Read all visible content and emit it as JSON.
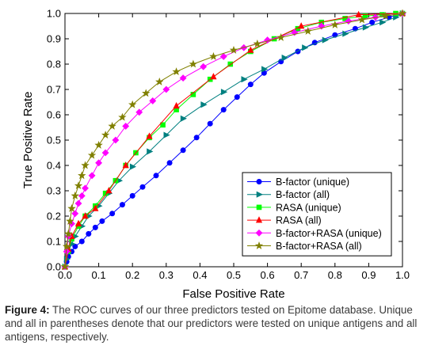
{
  "chart_data": {
    "type": "line",
    "xlabel": "False Positive Rate",
    "ylabel": "True Positive Rate",
    "xlim": [
      0.0,
      1.0
    ],
    "ylim": [
      0.0,
      1.0
    ],
    "x_ticks": [
      "0.0",
      "0.1",
      "0.2",
      "0.3",
      "0.4",
      "0.5",
      "0.6",
      "0.7",
      "0.8",
      "0.9",
      "1.0"
    ],
    "y_ticks": [
      "0.0",
      "0.1",
      "0.2",
      "0.3",
      "0.4",
      "0.5",
      "0.6",
      "0.7",
      "0.8",
      "0.9",
      "1.0"
    ],
    "grid": false,
    "legend_position": "lower-right",
    "series": [
      {
        "name": "B-factor (unique)",
        "color": "#0000ff",
        "marker": "circle",
        "x": [
          0,
          0.005,
          0.01,
          0.02,
          0.03,
          0.05,
          0.07,
          0.09,
          0.11,
          0.14,
          0.17,
          0.2,
          0.23,
          0.27,
          0.31,
          0.35,
          0.39,
          0.43,
          0.47,
          0.51,
          0.55,
          0.59,
          0.64,
          0.69,
          0.74,
          0.8,
          0.86,
          0.91,
          0.96,
          1.0
        ],
        "y": [
          0,
          0.02,
          0.04,
          0.06,
          0.08,
          0.1,
          0.13,
          0.155,
          0.18,
          0.21,
          0.245,
          0.28,
          0.315,
          0.36,
          0.41,
          0.46,
          0.51,
          0.565,
          0.62,
          0.67,
          0.72,
          0.765,
          0.81,
          0.85,
          0.885,
          0.915,
          0.94,
          0.965,
          0.985,
          1.0
        ]
      },
      {
        "name": "B-factor (all)",
        "color": "#008080",
        "marker": "triangle-right",
        "x": [
          0,
          0.005,
          0.01,
          0.02,
          0.03,
          0.05,
          0.07,
          0.1,
          0.13,
          0.16,
          0.2,
          0.25,
          0.3,
          0.35,
          0.41,
          0.47,
          0.53,
          0.59,
          0.65,
          0.71,
          0.77,
          0.83,
          0.89,
          0.94,
          0.98,
          1.0
        ],
        "y": [
          0,
          0.03,
          0.06,
          0.09,
          0.12,
          0.16,
          0.2,
          0.24,
          0.29,
          0.34,
          0.395,
          0.455,
          0.52,
          0.585,
          0.64,
          0.69,
          0.74,
          0.78,
          0.825,
          0.865,
          0.895,
          0.92,
          0.945,
          0.965,
          0.985,
          1.0
        ]
      },
      {
        "name": "RASA (unique)",
        "color": "#00ff00",
        "marker": "square",
        "x": [
          0,
          0.01,
          0.02,
          0.04,
          0.06,
          0.09,
          0.12,
          0.15,
          0.18,
          0.21,
          0.25,
          0.29,
          0.33,
          0.38,
          0.43,
          0.49,
          0.55,
          0.62,
          0.69,
          0.76,
          0.83,
          0.89,
          0.94,
          0.98,
          1.0
        ],
        "y": [
          0,
          0.06,
          0.11,
          0.16,
          0.2,
          0.24,
          0.29,
          0.34,
          0.4,
          0.45,
          0.51,
          0.56,
          0.62,
          0.68,
          0.74,
          0.8,
          0.85,
          0.9,
          0.94,
          0.965,
          0.98,
          0.99,
          0.995,
          1.0,
          1.0
        ]
      },
      {
        "name": "RASA (all)",
        "color": "#ff0000",
        "marker": "triangle-up",
        "x": [
          0,
          0.01,
          0.02,
          0.04,
          0.06,
          0.09,
          0.13,
          0.18,
          0.25,
          0.33,
          0.44,
          0.55,
          0.7,
          0.87,
          1.0
        ],
        "y": [
          0,
          0.07,
          0.12,
          0.17,
          0.2,
          0.23,
          0.3,
          0.4,
          0.515,
          0.635,
          0.75,
          0.855,
          0.95,
          0.995,
          1.0
        ]
      },
      {
        "name": "B-factor+RASA (unique)",
        "color": "#ff00ff",
        "marker": "diamond",
        "x": [
          0,
          0.005,
          0.01,
          0.02,
          0.03,
          0.04,
          0.05,
          0.06,
          0.08,
          0.1,
          0.12,
          0.15,
          0.18,
          0.22,
          0.26,
          0.3,
          0.35,
          0.41,
          0.47,
          0.53,
          0.6,
          0.68,
          0.76,
          0.84,
          0.92,
          1.0
        ],
        "y": [
          0,
          0.06,
          0.12,
          0.17,
          0.21,
          0.25,
          0.28,
          0.31,
          0.36,
          0.41,
          0.45,
          0.5,
          0.555,
          0.61,
          0.655,
          0.7,
          0.745,
          0.79,
          0.83,
          0.865,
          0.895,
          0.925,
          0.95,
          0.97,
          0.985,
          1.0
        ]
      },
      {
        "name": "B-factor+RASA (all)",
        "color": "#808000",
        "marker": "star",
        "x": [
          0,
          0.005,
          0.01,
          0.015,
          0.02,
          0.03,
          0.04,
          0.05,
          0.06,
          0.08,
          0.1,
          0.12,
          0.14,
          0.17,
          0.2,
          0.24,
          0.28,
          0.33,
          0.38,
          0.44,
          0.5,
          0.57,
          0.64,
          0.72,
          0.8,
          0.88,
          0.95,
          1.0
        ],
        "y": [
          0,
          0.08,
          0.13,
          0.18,
          0.23,
          0.28,
          0.32,
          0.36,
          0.4,
          0.44,
          0.48,
          0.52,
          0.555,
          0.59,
          0.64,
          0.685,
          0.73,
          0.77,
          0.8,
          0.83,
          0.855,
          0.88,
          0.905,
          0.93,
          0.955,
          0.975,
          0.99,
          1.0
        ]
      }
    ]
  },
  "caption": {
    "label": "Figure 4:",
    "text": " The ROC curves of our three predictors tested on Epitome database. Unique and all in parentheses denote that our predictors were tested on unique antigens and all antigens, respectively."
  }
}
